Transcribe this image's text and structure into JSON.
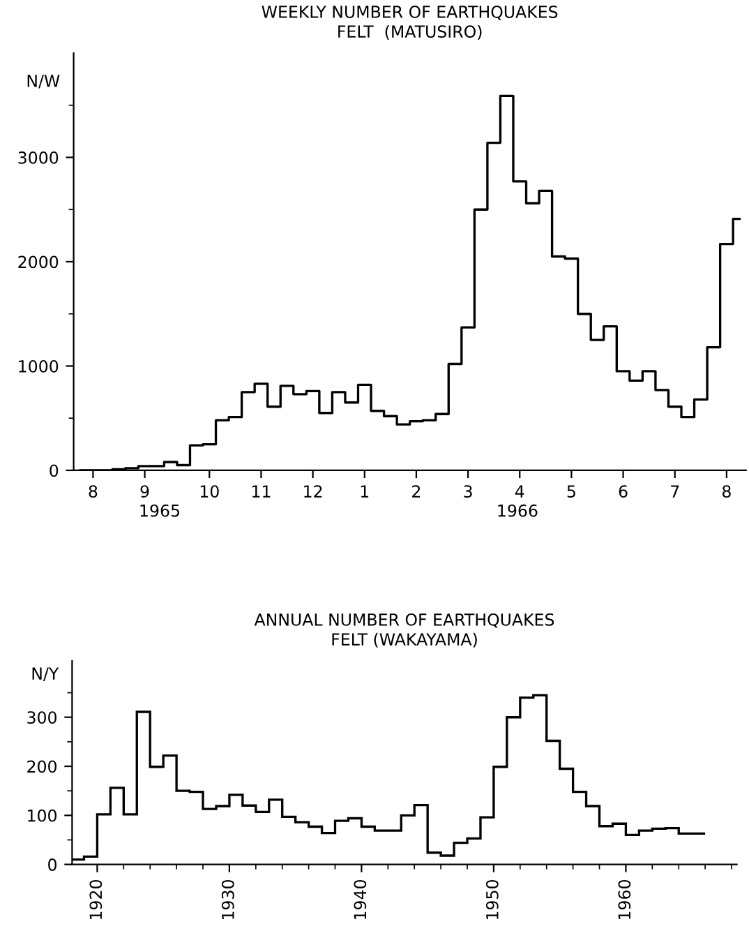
{
  "chart_data": [
    {
      "type": "step",
      "title": "WEEKLY NUMBER OF EARTHQUAKES\nFELT  (MATUSIRO)",
      "ylabel": "N/W",
      "color": "#000000",
      "grid": false,
      "categories": [
        null,
        "8",
        null,
        null,
        null,
        "9",
        null,
        null,
        null,
        null,
        "10",
        null,
        null,
        null,
        "11",
        null,
        null,
        null,
        "12",
        null,
        null,
        null,
        "1",
        null,
        null,
        null,
        "2",
        null,
        null,
        null,
        "3",
        null,
        null,
        null,
        "4",
        null,
        null,
        null,
        "5",
        null,
        null,
        null,
        "6",
        null,
        null,
        null,
        "7",
        null,
        null,
        null,
        "8",
        null
      ],
      "values": [
        0,
        0,
        0,
        10,
        20,
        40,
        40,
        80,
        50,
        240,
        250,
        480,
        510,
        750,
        830,
        610,
        810,
        730,
        760,
        550,
        750,
        650,
        820,
        570,
        520,
        440,
        470,
        480,
        540,
        1020,
        1370,
        2500,
        3140,
        3590,
        2770,
        2560,
        2680,
        2050,
        2030,
        1500,
        1250,
        1380,
        950,
        860,
        950,
        770,
        610,
        510,
        680,
        1180,
        2170,
        2410
      ],
      "ylim": [
        0,
        4000
      ],
      "yticks": [
        0,
        1000,
        2000,
        3000,
        {
          "value": 500,
          "label": null
        },
        {
          "value": 1500,
          "label": null
        },
        {
          "value": 2500,
          "label": null
        },
        {
          "value": 3500,
          "label": null
        }
      ],
      "annotations": [
        "1965",
        "1966"
      ]
    },
    {
      "type": "histogram",
      "title": "ANNUAL NUMBER OF EARTHQUAKES\nFELT (WAKAYAMA)",
      "ylabel": "N/Y",
      "color": "#000000",
      "grid": false,
      "bins": [
        1918,
        1919,
        1920,
        1921,
        1922,
        1923,
        1924,
        1925,
        1926,
        1927,
        1928,
        1929,
        1930,
        1931,
        1932,
        1933,
        1934,
        1935,
        1936,
        1937,
        1938,
        1939,
        1940,
        1941,
        1942,
        1943,
        1944,
        1945,
        1946,
        1947,
        1948,
        1949,
        1950,
        1951,
        1952,
        1953,
        1954,
        1955,
        1956,
        1957,
        1958,
        1959,
        1960,
        1961,
        1962,
        1963,
        1964,
        1965,
        1966
      ],
      "values": [
        10,
        16,
        102,
        156,
        102,
        311,
        199,
        222,
        150,
        148,
        113,
        119,
        142,
        120,
        107,
        132,
        97,
        86,
        77,
        64,
        89,
        94,
        77,
        69,
        69,
        100,
        121,
        24,
        18,
        44,
        53,
        96,
        199,
        300,
        340,
        345,
        252,
        195,
        148,
        119,
        78,
        83,
        60,
        69,
        73,
        74,
        63,
        63
      ],
      "xlim": [
        1918.1,
        1968.4
      ],
      "ylim": [
        0,
        415
      ],
      "xticks": [
        1920,
        1930,
        1940,
        1950,
        1960,
        {
          "value": 1922,
          "label": null
        },
        {
          "value": 1924,
          "label": null
        },
        {
          "value": 1926,
          "label": null
        },
        {
          "value": 1928,
          "label": null
        },
        {
          "value": 1932,
          "label": null
        },
        {
          "value": 1934,
          "label": null
        },
        {
          "value": 1936,
          "label": null
        },
        {
          "value": 1938,
          "label": null
        },
        {
          "value": 1942,
          "label": null
        },
        {
          "value": 1944,
          "label": null
        },
        {
          "value": 1946,
          "label": null
        },
        {
          "value": 1948,
          "label": null
        },
        {
          "value": 1952,
          "label": null
        },
        {
          "value": 1954,
          "label": null
        },
        {
          "value": 1956,
          "label": null
        },
        {
          "value": 1958,
          "label": null
        },
        {
          "value": 1962,
          "label": null
        },
        {
          "value": 1964,
          "label": null
        },
        {
          "value": 1966,
          "label": null
        },
        {
          "value": 1968,
          "label": null
        }
      ],
      "yticks": [
        0,
        100,
        200,
        300,
        {
          "value": 50,
          "label": null
        },
        {
          "value": 150,
          "label": null
        },
        {
          "value": 250,
          "label": null
        },
        {
          "value": 350,
          "label": null
        }
      ]
    }
  ]
}
